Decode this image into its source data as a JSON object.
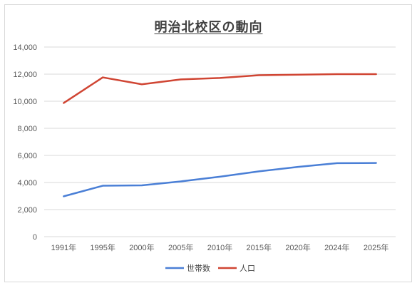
{
  "chart_data": {
    "type": "line",
    "title": "明治北校区の動向",
    "categories": [
      "1991年",
      "1995年",
      "2000年",
      "2005年",
      "2010年",
      "2015年",
      "2020年",
      "2024年",
      "2025年"
    ],
    "series": [
      {
        "name": "世帯数",
        "values": [
          2980,
          3760,
          3790,
          4080,
          4430,
          4820,
          5150,
          5430,
          5440
        ],
        "color": "#4a7fd6"
      },
      {
        "name": "人口",
        "values": [
          9870,
          11760,
          11250,
          11610,
          11720,
          11920,
          11960,
          12000,
          12000
        ],
        "color": "#d04533"
      }
    ],
    "ylim": [
      0,
      14000
    ],
    "yticks": [
      0,
      2000,
      4000,
      6000,
      8000,
      10000,
      12000,
      14000
    ],
    "ytick_labels": [
      "0",
      "2,000",
      "4,000",
      "6,000",
      "8,000",
      "10,000",
      "12,000",
      "14,000"
    ],
    "grid": true,
    "legend": "bottom",
    "xlabel": "",
    "ylabel": ""
  }
}
